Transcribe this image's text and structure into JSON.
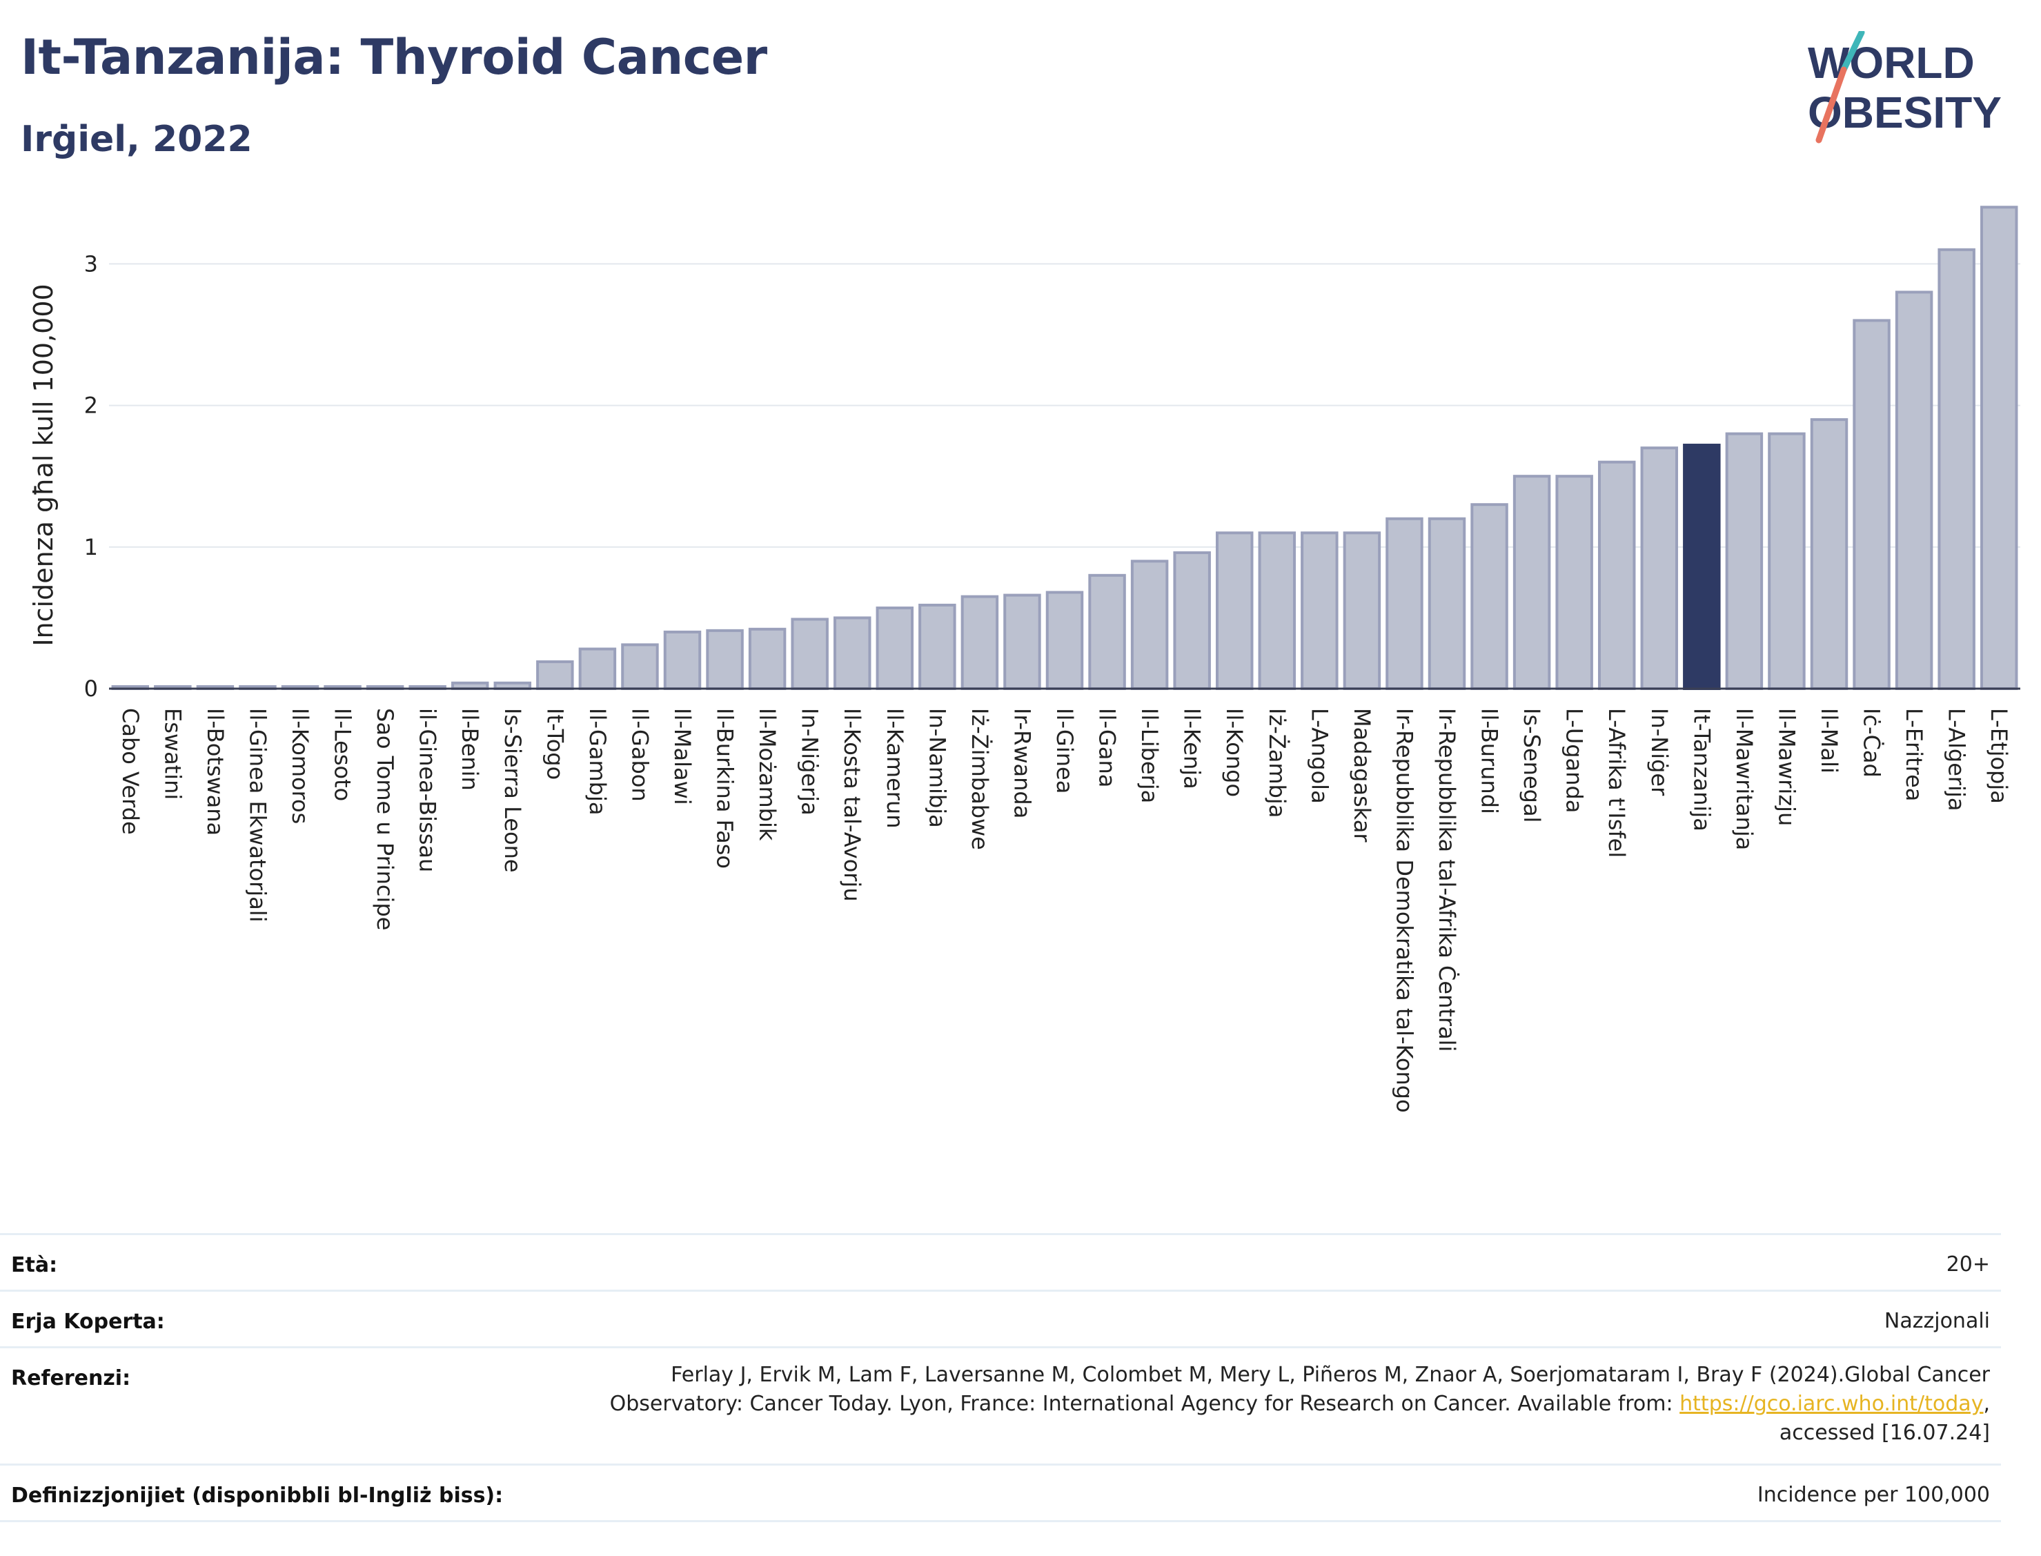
{
  "header": {
    "title": "It-Tanzanija: Thyroid Cancer",
    "subtitle": "Irġiel, 2022",
    "logo_text_1": "WORLD",
    "logo_text_2": "OBESITY"
  },
  "colors": {
    "highlight": "#2e3a64",
    "bar": "#bcc1d0",
    "bar_border": "#9aa0bb",
    "title": "#2e3a64",
    "logo_teal": "#3fb6b9",
    "logo_coral": "#e8735f"
  },
  "chart_data": {
    "type": "bar",
    "ylabel": "Incidenza għal kull 100,000",
    "xlabel": "",
    "ylim": [
      0,
      3.45
    ],
    "yticks": [
      0,
      1,
      2,
      3
    ],
    "grid": true,
    "highlight_category": "It-Tanzanija",
    "categories": [
      "Cabo Verde",
      "Eswatini",
      "Il-Botswana",
      "Il-Ginea Ekwatorjali",
      "Il-Komoros",
      "Il-Lesoto",
      "Sao Tome u Principe",
      "il-Ginea-Bissau",
      "Il-Benin",
      "Is-Sierra Leone",
      "It-Togo",
      "Il-Gambja",
      "Il-Gabon",
      "Il-Malawi",
      "Il-Burkina Faso",
      "Il-Możambik",
      "In-Niġerja",
      "Il-Kosta tal-Avorju",
      "Il-Kamerun",
      "In-Namibja",
      "Iż-Żimbabwe",
      "Ir-Rwanda",
      "Il-Ginea",
      "Il-Gana",
      "Il-Liberja",
      "Il-Kenja",
      "Il-Kongo",
      "Iż-Żambja",
      "L-Angola",
      "Madagaskar",
      "Ir-Repubblika Demokratika tal-Kongo",
      "Ir-Repubblika tal-Afrika Ċentrali",
      "Il-Burundi",
      "Is-Senegal",
      "L-Uganda",
      "L-Afrika t'Isfel",
      "In-Niġer",
      "It-Tanzanija",
      "Il-Mawritanja",
      "Il-Mawrizju",
      "Il-Mali",
      "Iċ-Ċad",
      "L-Eritrea",
      "L-Alġerija",
      "L-Etjopja"
    ],
    "values": [
      0.01,
      0.01,
      0.01,
      0.01,
      0.01,
      0.01,
      0.01,
      0.01,
      0.04,
      0.04,
      0.19,
      0.28,
      0.31,
      0.4,
      0.41,
      0.42,
      0.49,
      0.5,
      0.57,
      0.59,
      0.65,
      0.66,
      0.68,
      0.8,
      0.9,
      0.96,
      1.1,
      1.1,
      1.1,
      1.1,
      1.2,
      1.2,
      1.3,
      1.5,
      1.5,
      1.6,
      1.7,
      1.72,
      1.8,
      1.8,
      1.9,
      2.6,
      2.8,
      3.1,
      3.4
    ]
  },
  "meta": {
    "age_label": "Età:",
    "age_value": "20+",
    "area_label": "Erja Koperta:",
    "area_value": "Nazzjonali",
    "ref_label": "Referenzi:",
    "ref_line1": "Ferlay J, Ervik M, Lam F, Laversanne M, Colombet M, Mery L, Piñeros M, Znaor A, Soerjomataram I, Bray F (2024).Global Cancer",
    "ref_line2_pre": "Observatory: Cancer Today. Lyon, France: International Agency for Research on Cancer. Available from: ",
    "ref_link": "https://gco.iarc.who.int/today",
    "ref_line2_post": ",",
    "ref_line3": "accessed [16.07.24]",
    "def_label": "Definizzjonijiet (disponibbli bl-Ingliż biss):",
    "def_value": "Incidence per 100,000"
  }
}
